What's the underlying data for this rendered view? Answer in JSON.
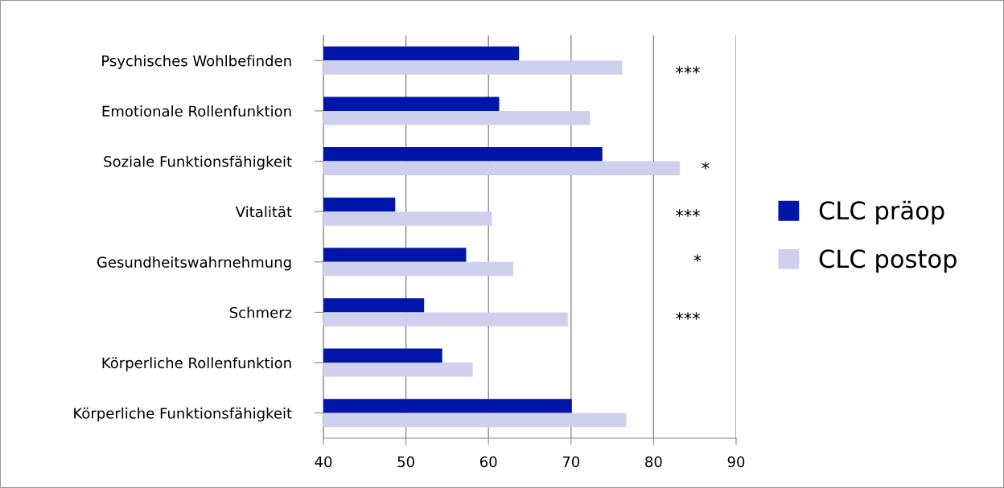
{
  "chart_data": {
    "type": "bar",
    "orientation": "horizontal",
    "categories": [
      "Psychisches Wohlbefinden",
      "Emotionale Rollenfunktion",
      "Soziale Funktionsfähigkeit",
      "Vitalität",
      "Gesundheitswahrnehmung",
      "Schmerz",
      "Körperliche Rollenfunktion",
      "Körperliche Funktionsfähigkeit"
    ],
    "series": [
      {
        "name": "CLC präop",
        "color": "#0016a8",
        "values": [
          63.7,
          61.3,
          73.8,
          48.7,
          57.3,
          52.2,
          54.4,
          70.1
        ]
      },
      {
        "name": "CLC postop",
        "color": "#cfcfee",
        "values": [
          76.2,
          72.3,
          83.2,
          60.4,
          63.0,
          69.6,
          58.1,
          76.7
        ]
      }
    ],
    "xlim": [
      40,
      90
    ],
    "xticks": [
      40,
      50,
      60,
      70,
      80,
      90
    ],
    "grid": "x",
    "legend": "right",
    "annotations": [
      "***",
      "*",
      "***",
      "*",
      "***"
    ]
  }
}
